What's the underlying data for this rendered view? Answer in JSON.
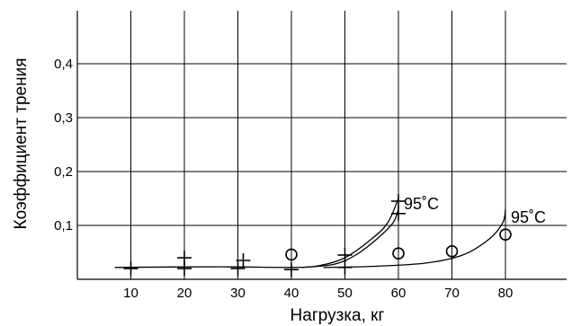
{
  "chart_data": {
    "type": "scatter",
    "title": "",
    "xlabel": "Нагрузка, кг",
    "ylabel": "Коэффициент трения",
    "xlim": [
      0,
      90
    ],
    "ylim": [
      0,
      0.5
    ],
    "x_ticks": [
      "10",
      "20",
      "30",
      "40",
      "50",
      "60",
      "70",
      "80"
    ],
    "x_tick_values": [
      10,
      20,
      30,
      40,
      50,
      60,
      70,
      80
    ],
    "y_ticks": [
      "0,1",
      "0,2",
      "0,3",
      "0,4"
    ],
    "y_tick_values": [
      0.1,
      0.2,
      0.3,
      0.4
    ],
    "grid": true,
    "series": [
      {
        "marker": "plus",
        "points": [
          [
            10,
            0.02
          ],
          [
            20,
            0.04
          ],
          [
            20,
            0.02
          ],
          [
            30,
            0.02
          ],
          [
            31,
            0.035
          ],
          [
            40,
            0.018
          ],
          [
            50,
            0.045
          ],
          [
            50,
            0.022
          ],
          [
            60,
            0.145
          ],
          [
            60,
            0.122
          ]
        ]
      },
      {
        "marker": "circle",
        "points": [
          [
            40,
            0.046
          ],
          [
            60,
            0.048
          ],
          [
            70,
            0.052
          ],
          [
            80,
            0.083
          ]
        ]
      }
    ],
    "curves": [
      {
        "points": [
          [
            7,
            0.022
          ],
          [
            20,
            0.023
          ],
          [
            30,
            0.023
          ],
          [
            40,
            0.022
          ],
          [
            45,
            0.025
          ],
          [
            50,
            0.04
          ],
          [
            55,
            0.075
          ],
          [
            58,
            0.105
          ],
          [
            60,
            0.15
          ]
        ]
      },
      {
        "points": [
          [
            42,
            0.022
          ],
          [
            48,
            0.028
          ],
          [
            52,
            0.045
          ],
          [
            56,
            0.075
          ],
          [
            59,
            0.105
          ],
          [
            60,
            0.13
          ]
        ]
      },
      {
        "points": [
          [
            46,
            0.022
          ],
          [
            55,
            0.024
          ],
          [
            65,
            0.03
          ],
          [
            72,
            0.045
          ],
          [
            77,
            0.075
          ],
          [
            79.5,
            0.105
          ],
          [
            80,
            0.13
          ]
        ]
      }
    ],
    "annotations": [
      {
        "text": "95˚C",
        "x": 61,
        "y": 0.14
      },
      {
        "text": "95˚C",
        "x": 81,
        "y": 0.115
      }
    ]
  }
}
